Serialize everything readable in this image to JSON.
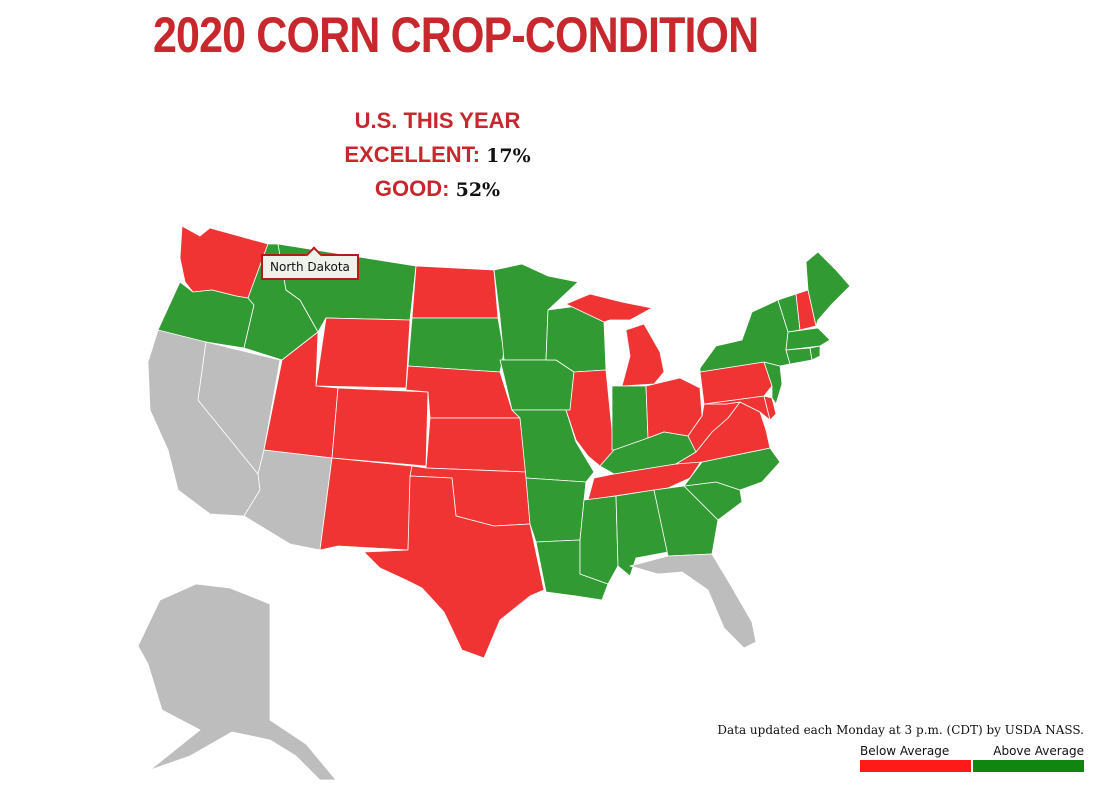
{
  "title": "2020 CORN CROP-CONDITION",
  "summary": {
    "heading": "U.S. THIS YEAR",
    "excellent_label": "EXCELLENT:",
    "excellent_value": "17%",
    "good_label": "GOOD:",
    "good_value": "52%"
  },
  "tooltip": "North Dakota",
  "footer_note": "Data updated each Monday at 3 p.m. (CDT) by USDA NASS.",
  "legend": {
    "below_label": "Below Average",
    "above_label": "Above Average",
    "below_color": "#ff1a1a",
    "above_color": "#108510"
  },
  "colors": {
    "below": "#f03434",
    "above": "#319a32",
    "no_data": "#bdbdbd",
    "title": "#c8282d"
  },
  "states": [
    {
      "name": "Washington",
      "status": "below"
    },
    {
      "name": "Oregon",
      "status": "above"
    },
    {
      "name": "California",
      "status": "no_data"
    },
    {
      "name": "Nevada",
      "status": "no_data"
    },
    {
      "name": "Idaho",
      "status": "above"
    },
    {
      "name": "Montana",
      "status": "above"
    },
    {
      "name": "Wyoming",
      "status": "below"
    },
    {
      "name": "Utah",
      "status": "below"
    },
    {
      "name": "Arizona",
      "status": "no_data"
    },
    {
      "name": "Colorado",
      "status": "below"
    },
    {
      "name": "New Mexico",
      "status": "below"
    },
    {
      "name": "North Dakota",
      "status": "below"
    },
    {
      "name": "South Dakota",
      "status": "above"
    },
    {
      "name": "Nebraska",
      "status": "below"
    },
    {
      "name": "Kansas",
      "status": "below"
    },
    {
      "name": "Oklahoma",
      "status": "below"
    },
    {
      "name": "Texas",
      "status": "below"
    },
    {
      "name": "Minnesota",
      "status": "above"
    },
    {
      "name": "Iowa",
      "status": "above"
    },
    {
      "name": "Missouri",
      "status": "above"
    },
    {
      "name": "Arkansas",
      "status": "above"
    },
    {
      "name": "Louisiana",
      "status": "above"
    },
    {
      "name": "Wisconsin",
      "status": "above"
    },
    {
      "name": "Illinois",
      "status": "below"
    },
    {
      "name": "Michigan",
      "status": "below"
    },
    {
      "name": "Indiana",
      "status": "above"
    },
    {
      "name": "Ohio",
      "status": "below"
    },
    {
      "name": "Kentucky",
      "status": "above"
    },
    {
      "name": "Tennessee",
      "status": "below"
    },
    {
      "name": "Mississippi",
      "status": "above"
    },
    {
      "name": "Alabama",
      "status": "above"
    },
    {
      "name": "Georgia",
      "status": "above"
    },
    {
      "name": "Florida",
      "status": "no_data"
    },
    {
      "name": "South Carolina",
      "status": "above"
    },
    {
      "name": "North Carolina",
      "status": "above"
    },
    {
      "name": "Virginia",
      "status": "below"
    },
    {
      "name": "West Virginia",
      "status": "below"
    },
    {
      "name": "Maryland",
      "status": "below"
    },
    {
      "name": "Delaware",
      "status": "below"
    },
    {
      "name": "Pennsylvania",
      "status": "below"
    },
    {
      "name": "New Jersey",
      "status": "above"
    },
    {
      "name": "New York",
      "status": "above"
    },
    {
      "name": "Connecticut",
      "status": "above"
    },
    {
      "name": "Rhode Island",
      "status": "above"
    },
    {
      "name": "Massachusetts",
      "status": "above"
    },
    {
      "name": "Vermont",
      "status": "above"
    },
    {
      "name": "New Hampshire",
      "status": "below"
    },
    {
      "name": "Maine",
      "status": "above"
    },
    {
      "name": "Alaska",
      "status": "no_data"
    }
  ]
}
